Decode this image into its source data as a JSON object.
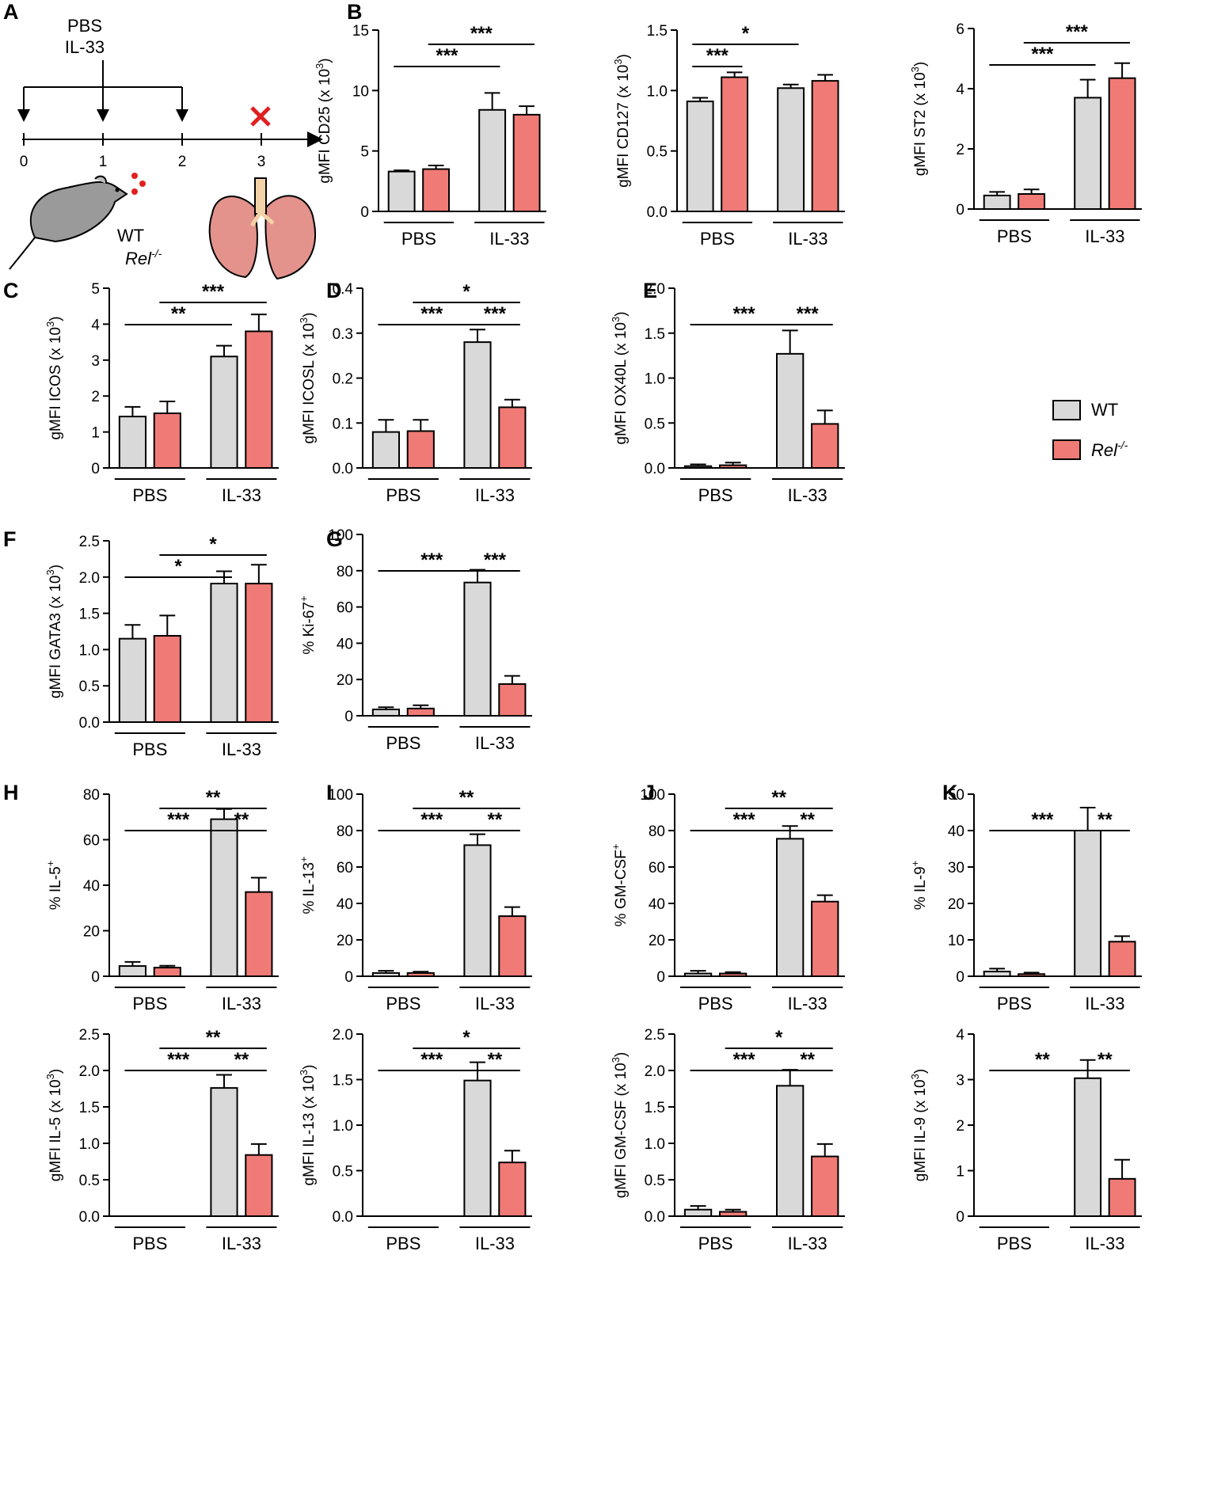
{
  "chart_data": {
    "type": "bar",
    "legend": {
      "position": "right",
      "entries": [
        {
          "name": "WT",
          "color": "#d9d9d9"
        },
        {
          "name": "Rel-/-",
          "sup": "-/-",
          "base": "Rel",
          "color": "#f07b76"
        }
      ]
    },
    "colors": {
      "wt": "#d9d9d9",
      "rel": "#f07b76"
    },
    "categories": [
      "PBS",
      "IL-33"
    ],
    "schematic": {
      "panel": "A",
      "treatment_labels": [
        "PBS",
        "IL-33"
      ],
      "days": [
        "0",
        "1",
        "2",
        "3"
      ],
      "mouse_label_wt": "WT",
      "mouse_label_ko_base": "Rel",
      "mouse_label_ko_sup": "-/-",
      "mouse_icon": "mouse-icon",
      "lung_icon": "lung-icon",
      "cross_icon": "cross-icon"
    },
    "charts": [
      {
        "id": "B1",
        "label": "B",
        "ylabel": "gMFI CD25 (x 10",
        "yunit_sup": "3",
        "ylabel_end": ")",
        "ylim": [
          0,
          15
        ],
        "ticks": [
          0,
          5,
          10,
          15
        ],
        "tick_labels": [
          "0",
          "5",
          "10",
          "15"
        ],
        "series": [
          {
            "name": "WT",
            "values": [
              3.3,
              8.4
            ],
            "errors": [
              0.1,
              1.4
            ]
          },
          {
            "name": "Rel-/-",
            "values": [
              3.5,
              8.0
            ],
            "errors": [
              0.3,
              0.7
            ]
          }
        ],
        "sig": [
          {
            "from": 0,
            "to": 2,
            "label": "***",
            "level": 0
          },
          {
            "from": 1,
            "to": 3,
            "label": "***",
            "level": 1
          }
        ]
      },
      {
        "id": "B2",
        "label": "",
        "ylabel": "gMFI CD127 (x 10",
        "yunit_sup": "3",
        "ylabel_end": ")",
        "ylim": [
          0,
          1.5
        ],
        "ticks": [
          0,
          0.5,
          1,
          1.5
        ],
        "tick_labels": [
          "0.0",
          "0.5",
          "1.0",
          "1.5"
        ],
        "series": [
          {
            "name": "WT",
            "values": [
              0.91,
              1.02
            ],
            "errors": [
              0.03,
              0.03
            ]
          },
          {
            "name": "Rel-/-",
            "values": [
              1.11,
              1.08
            ],
            "errors": [
              0.04,
              0.05
            ]
          }
        ],
        "sig": [
          {
            "from": 0,
            "to": 1,
            "label": "***",
            "level": 0
          },
          {
            "from": 0,
            "to": 2,
            "label": "*",
            "level": 1
          }
        ]
      },
      {
        "id": "B3",
        "label": "",
        "ylabel": "gMFI ST2 (x 10",
        "yunit_sup": "3",
        "ylabel_end": ")",
        "ylim": [
          0,
          6
        ],
        "ticks": [
          0,
          2,
          4,
          6
        ],
        "tick_labels": [
          "0",
          "2",
          "4",
          "6"
        ],
        "series": [
          {
            "name": "WT",
            "values": [
              0.45,
              3.7
            ],
            "errors": [
              0.12,
              0.6
            ]
          },
          {
            "name": "Rel-/-",
            "values": [
              0.5,
              4.35
            ],
            "errors": [
              0.15,
              0.5
            ]
          }
        ],
        "sig": [
          {
            "from": 0,
            "to": 2,
            "label": "***",
            "level": 0
          },
          {
            "from": 1,
            "to": 3,
            "label": "***",
            "level": 1
          }
        ]
      },
      {
        "id": "C",
        "label": "C",
        "ylabel": "gMFI ICOS (x 10",
        "yunit_sup": "3",
        "ylabel_end": ")",
        "ylim": [
          0,
          5
        ],
        "ticks": [
          0,
          1,
          2,
          3,
          4,
          5
        ],
        "tick_labels": [
          "0",
          "1",
          "2",
          "3",
          "4",
          "5"
        ],
        "series": [
          {
            "name": "WT",
            "values": [
              1.43,
              3.1
            ],
            "errors": [
              0.27,
              0.3
            ]
          },
          {
            "name": "Rel-/-",
            "values": [
              1.52,
              3.8
            ],
            "errors": [
              0.33,
              0.47
            ]
          }
        ],
        "sig": [
          {
            "from": 0,
            "to": 2,
            "label": "**",
            "level": 0
          },
          {
            "from": 1,
            "to": 3,
            "label": "***",
            "level": 1
          }
        ]
      },
      {
        "id": "D",
        "label": "D",
        "ylabel": "gMFI ICOSL (x 10",
        "yunit_sup": "3",
        "ylabel_end": ")",
        "ylim": [
          0,
          0.4
        ],
        "ticks": [
          0,
          0.1,
          0.2,
          0.3,
          0.4
        ],
        "tick_labels": [
          "0.0",
          "0.1",
          "0.2",
          "0.3",
          "0.4"
        ],
        "series": [
          {
            "name": "WT",
            "values": [
              0.08,
              0.28
            ],
            "errors": [
              0.027,
              0.028
            ]
          },
          {
            "name": "Rel-/-",
            "values": [
              0.082,
              0.135
            ],
            "errors": [
              0.025,
              0.017
            ]
          }
        ],
        "sig": [
          {
            "from": 0,
            "to": 2,
            "label": "***",
            "level": 0
          },
          {
            "from": 2,
            "to": 3,
            "label": "***",
            "level": 0
          },
          {
            "from": 1,
            "to": 3,
            "label": "*",
            "level": 1
          }
        ]
      },
      {
        "id": "E",
        "label": "E",
        "ylabel": "gMFI OX40L (x 10",
        "yunit_sup": "3",
        "ylabel_end": ")",
        "ylim": [
          0,
          2
        ],
        "ticks": [
          0,
          0.5,
          1,
          1.5,
          2
        ],
        "tick_labels": [
          "0.0",
          "0.5",
          "1.0",
          "1.5",
          "2.0"
        ],
        "series": [
          {
            "name": "WT",
            "values": [
              0.02,
              1.27
            ],
            "errors": [
              0.02,
              0.26
            ]
          },
          {
            "name": "Rel-/-",
            "values": [
              0.03,
              0.49
            ],
            "errors": [
              0.03,
              0.15
            ]
          }
        ],
        "sig": [
          {
            "from": 0,
            "to": 2,
            "label": "***",
            "level": 0
          },
          {
            "from": 2,
            "to": 3,
            "label": "***",
            "level": 0
          }
        ]
      },
      {
        "id": "F",
        "label": "F",
        "ylabel": "gMFI GATA3 (x 10",
        "yunit_sup": "3",
        "ylabel_end": ")",
        "ylim": [
          0,
          2.5
        ],
        "ticks": [
          0,
          0.5,
          1,
          1.5,
          2,
          2.5
        ],
        "tick_labels": [
          "0.0",
          "0.5",
          "1.0",
          "1.5",
          "2.0",
          "2.5"
        ],
        "series": [
          {
            "name": "WT",
            "values": [
              1.15,
              1.91
            ],
            "errors": [
              0.19,
              0.17
            ]
          },
          {
            "name": "Rel-/-",
            "values": [
              1.19,
              1.91
            ],
            "errors": [
              0.28,
              0.26
            ]
          }
        ],
        "sig": [
          {
            "from": 0,
            "to": 2,
            "label": "*",
            "level": 0
          },
          {
            "from": 1,
            "to": 3,
            "label": "*",
            "level": 1
          }
        ]
      },
      {
        "id": "G",
        "label": "G",
        "ylabel": "% Ki-67",
        "yunit_sup": "+",
        "ylabel_end": "",
        "ylim": [
          0,
          100
        ],
        "ticks": [
          0,
          20,
          40,
          60,
          80,
          100
        ],
        "tick_labels": [
          "0",
          "20",
          "40",
          "60",
          "80",
          "100"
        ],
        "series": [
          {
            "name": "WT",
            "values": [
              3.5,
              73.5
            ],
            "errors": [
              1.2,
              7
            ]
          },
          {
            "name": "Rel-/-",
            "values": [
              4,
              17.5
            ],
            "errors": [
              1.8,
              4.5
            ]
          }
        ],
        "sig": [
          {
            "from": 0,
            "to": 2,
            "label": "***",
            "level": 0
          },
          {
            "from": 2,
            "to": 3,
            "label": "***",
            "level": 0
          }
        ]
      },
      {
        "id": "H1",
        "label": "H",
        "ylabel": "% IL-5",
        "yunit_sup": "+",
        "ylabel_end": "",
        "ylim": [
          0,
          80
        ],
        "ticks": [
          0,
          20,
          40,
          60,
          80
        ],
        "tick_labels": [
          "0",
          "20",
          "40",
          "60",
          "80"
        ],
        "series": [
          {
            "name": "WT",
            "values": [
              4.5,
              69
            ],
            "errors": [
              1.8,
              4.5
            ]
          },
          {
            "name": "Rel-/-",
            "values": [
              3.8,
              37
            ],
            "errors": [
              0.8,
              6.3
            ]
          }
        ],
        "sig": [
          {
            "from": 0,
            "to": 2,
            "label": "***",
            "level": 0
          },
          {
            "from": 2,
            "to": 3,
            "label": "**",
            "level": 0
          },
          {
            "from": 1,
            "to": 3,
            "label": "**",
            "level": 1
          }
        ]
      },
      {
        "id": "I1",
        "label": "I",
        "ylabel": "% IL-13",
        "yunit_sup": "+",
        "ylabel_end": "",
        "ylim": [
          0,
          100
        ],
        "ticks": [
          0,
          20,
          40,
          60,
          80,
          100
        ],
        "tick_labels": [
          "0",
          "20",
          "40",
          "60",
          "80",
          "100"
        ],
        "series": [
          {
            "name": "WT",
            "values": [
              1.8,
              72
            ],
            "errors": [
              1.2,
              6
            ]
          },
          {
            "name": "Rel-/-",
            "values": [
              1.8,
              33
            ],
            "errors": [
              0.7,
              5
            ]
          }
        ],
        "sig": [
          {
            "from": 0,
            "to": 2,
            "label": "***",
            "level": 0
          },
          {
            "from": 2,
            "to": 3,
            "label": "**",
            "level": 0
          },
          {
            "from": 1,
            "to": 3,
            "label": "**",
            "level": 1
          }
        ]
      },
      {
        "id": "J1",
        "label": "J",
        "ylabel": "% GM-CSF",
        "yunit_sup": "+",
        "ylabel_end": "",
        "ylim": [
          0,
          100
        ],
        "ticks": [
          0,
          20,
          40,
          60,
          80,
          100
        ],
        "tick_labels": [
          "0",
          "20",
          "40",
          "60",
          "80",
          "100"
        ],
        "series": [
          {
            "name": "WT",
            "values": [
              1.5,
              75.5
            ],
            "errors": [
              1.5,
              7
            ]
          },
          {
            "name": "Rel-/-",
            "values": [
              1.5,
              41
            ],
            "errors": [
              0.8,
              3.5
            ]
          }
        ],
        "sig": [
          {
            "from": 0,
            "to": 2,
            "label": "***",
            "level": 0
          },
          {
            "from": 2,
            "to": 3,
            "label": "**",
            "level": 0
          },
          {
            "from": 1,
            "to": 3,
            "label": "**",
            "level": 1
          }
        ]
      },
      {
        "id": "K1",
        "label": "K",
        "ylabel": "% IL-9",
        "yunit_sup": "+",
        "ylabel_end": "",
        "ylim": [
          0,
          50
        ],
        "ticks": [
          0,
          10,
          20,
          30,
          40,
          50
        ],
        "tick_labels": [
          "0",
          "10",
          "20",
          "30",
          "40",
          "50"
        ],
        "series": [
          {
            "name": "WT",
            "values": [
              1.3,
              40
            ],
            "errors": [
              0.8,
              6.3
            ]
          },
          {
            "name": "Rel-/-",
            "values": [
              0.6,
              9.5
            ],
            "errors": [
              0.4,
              1.5
            ]
          }
        ],
        "sig": [
          {
            "from": 0,
            "to": 2,
            "label": "***",
            "level": 0
          },
          {
            "from": 2,
            "to": 3,
            "label": "**",
            "level": 0
          }
        ]
      },
      {
        "id": "H2",
        "label": "",
        "ylabel": "gMFI IL-5 (x 10",
        "yunit_sup": "3",
        "ylabel_end": ")",
        "ylim": [
          0,
          2.5
        ],
        "ticks": [
          0,
          0.5,
          1,
          1.5,
          2,
          2.5
        ],
        "tick_labels": [
          "0.0",
          "0.5",
          "1.0",
          "1.5",
          "2.0",
          "2.5"
        ],
        "series": [
          {
            "name": "WT",
            "values": [
              0,
              1.76
            ],
            "errors": [
              0,
              0.18
            ]
          },
          {
            "name": "Rel-/-",
            "values": [
              0,
              0.84
            ],
            "errors": [
              0,
              0.15
            ]
          }
        ],
        "sig": [
          {
            "from": 0,
            "to": 2,
            "label": "***",
            "level": 0
          },
          {
            "from": 2,
            "to": 3,
            "label": "**",
            "level": 0
          },
          {
            "from": 1,
            "to": 3,
            "label": "**",
            "level": 1
          }
        ]
      },
      {
        "id": "I2",
        "label": "",
        "ylabel": "gMFI IL-13 (x 10",
        "yunit_sup": "3",
        "ylabel_end": ")",
        "ylim": [
          0,
          2
        ],
        "ticks": [
          0,
          0.5,
          1,
          1.5,
          2
        ],
        "tick_labels": [
          "0.0",
          "0.5",
          "1.0",
          "1.5",
          "2.0"
        ],
        "series": [
          {
            "name": "WT",
            "values": [
              0,
              1.49
            ],
            "errors": [
              0,
              0.2
            ]
          },
          {
            "name": "Rel-/-",
            "values": [
              0,
              0.59
            ],
            "errors": [
              0,
              0.13
            ]
          }
        ],
        "sig": [
          {
            "from": 0,
            "to": 2,
            "label": "***",
            "level": 0
          },
          {
            "from": 2,
            "to": 3,
            "label": "**",
            "level": 0
          },
          {
            "from": 1,
            "to": 3,
            "label": "*",
            "level": 1
          }
        ]
      },
      {
        "id": "J2",
        "label": "",
        "ylabel": "gMFI GM-CSF (x 10",
        "yunit_sup": "3",
        "ylabel_end": ")",
        "ylim": [
          0,
          2.5
        ],
        "ticks": [
          0,
          0.5,
          1,
          1.5,
          2,
          2.5
        ],
        "tick_labels": [
          "0.0",
          "0.5",
          "1.0",
          "1.5",
          "2.0",
          "2.5"
        ],
        "series": [
          {
            "name": "WT",
            "values": [
              0.09,
              1.79
            ],
            "errors": [
              0.05,
              0.22
            ]
          },
          {
            "name": "Rel-/-",
            "values": [
              0.06,
              0.82
            ],
            "errors": [
              0.03,
              0.17
            ]
          }
        ],
        "sig": [
          {
            "from": 0,
            "to": 2,
            "label": "***",
            "level": 0
          },
          {
            "from": 2,
            "to": 3,
            "label": "**",
            "level": 0
          },
          {
            "from": 1,
            "to": 3,
            "label": "*",
            "level": 1
          }
        ]
      },
      {
        "id": "K2",
        "label": "",
        "ylabel": "gMFI IL-9 (x 10",
        "yunit_sup": "3",
        "ylabel_end": ")",
        "ylim": [
          0,
          4
        ],
        "ticks": [
          0,
          1,
          2,
          3,
          4
        ],
        "tick_labels": [
          "0",
          "1",
          "2",
          "3",
          "4"
        ],
        "series": [
          {
            "name": "WT",
            "values": [
              0,
              3.03
            ],
            "errors": [
              0,
              0.4
            ]
          },
          {
            "name": "Rel-/-",
            "values": [
              0,
              0.82
            ],
            "errors": [
              0,
              0.42
            ]
          }
        ],
        "sig": [
          {
            "from": 0,
            "to": 2,
            "label": "**",
            "level": 0
          },
          {
            "from": 2,
            "to": 3,
            "label": "**",
            "level": 0
          }
        ]
      }
    ]
  }
}
